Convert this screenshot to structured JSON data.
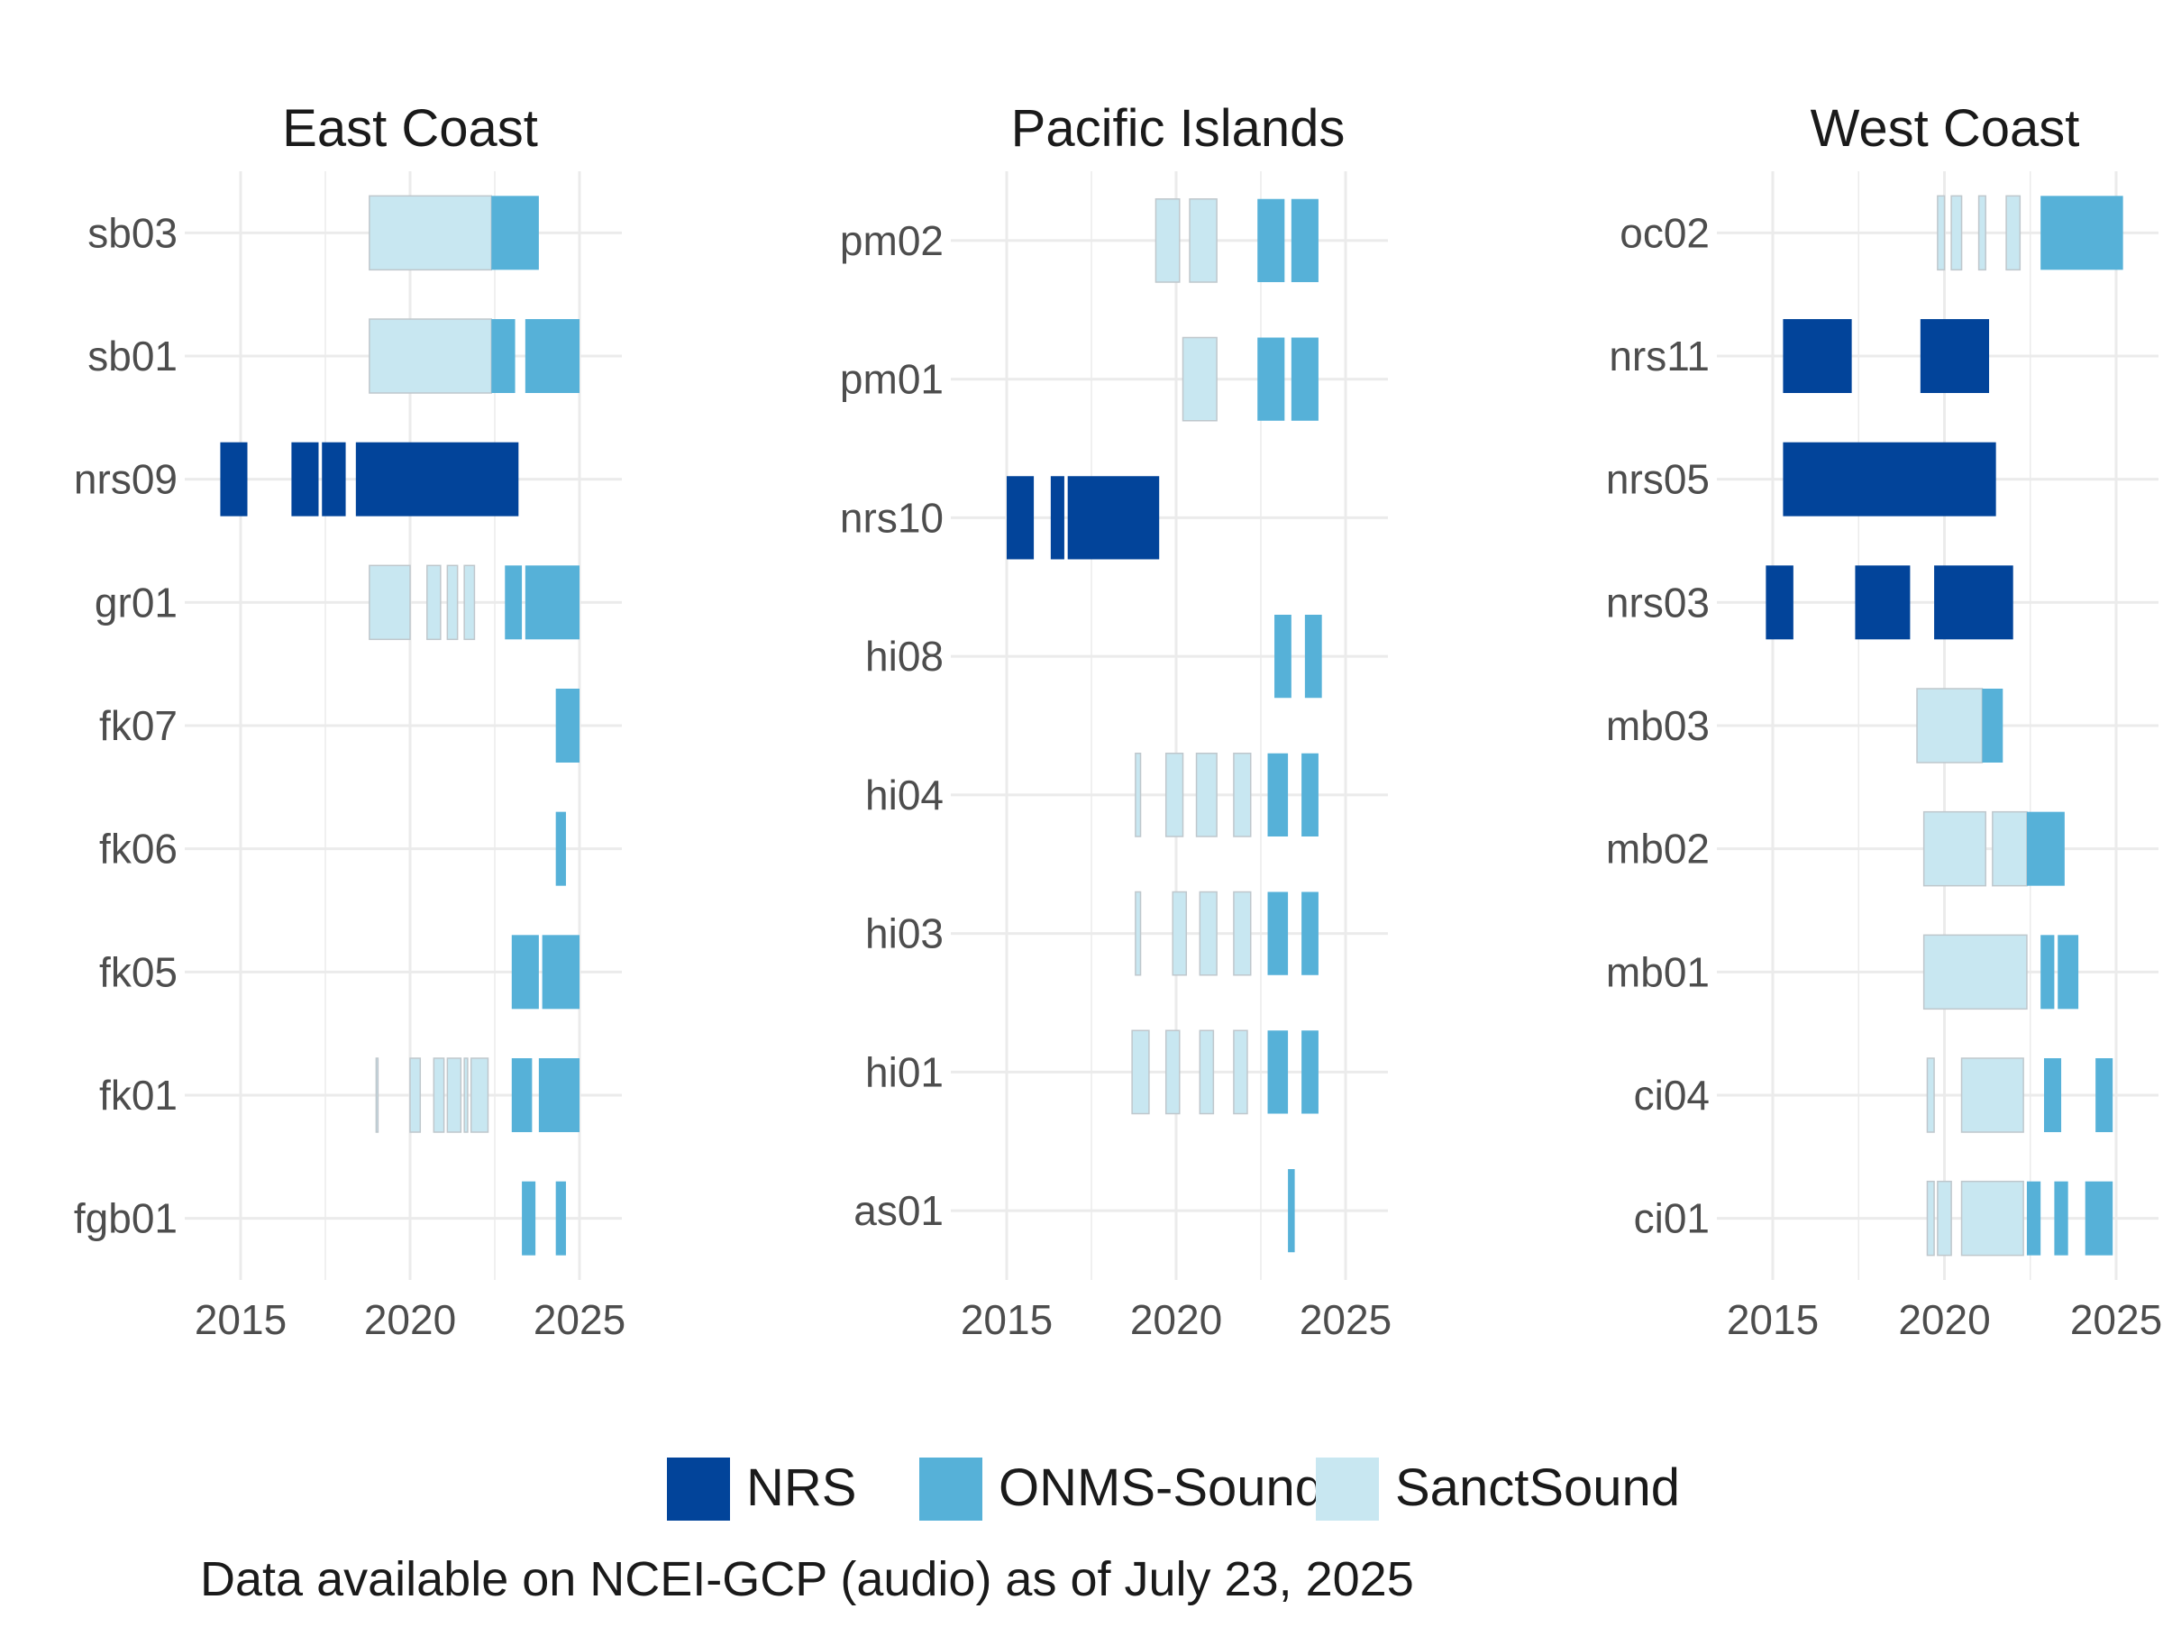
{
  "caption": "Data available on NCEI-GCP (audio) as of July 23, 2025",
  "colors": {
    "NRS": "#02449A",
    "ONMS-Sound": "#56B1D8",
    "SanctSound": "#C8E7F1",
    "grid": "#EBEBEB",
    "outline": "#BFC7CC"
  },
  "legend": {
    "items": [
      {
        "label": "NRS",
        "key": "NRS"
      },
      {
        "label": "ONMS-Sound",
        "key": "ONMS-Sound"
      },
      {
        "label": "SanctSound",
        "key": "SanctSound"
      }
    ]
  },
  "chart_data": {
    "type": "bar",
    "subtype": "faceted-timeline",
    "x_ticks": [
      "2015",
      "2020",
      "2025"
    ],
    "xlim": [
      2015,
      2026
    ],
    "grid": true,
    "legend_position": "bottom",
    "facets": [
      {
        "title": "East Coast",
        "sites": [
          "sb03",
          "sb01",
          "nrs09",
          "gr01",
          "fk07",
          "fk06",
          "fk05",
          "fk01",
          "fgb01"
        ],
        "segments": [
          {
            "site": "sb03",
            "program": "SanctSound",
            "start": 2018.8,
            "end": 2022.4
          },
          {
            "site": "sb03",
            "program": "ONMS-Sound",
            "start": 2022.4,
            "end": 2023.8
          },
          {
            "site": "sb01",
            "program": "SanctSound",
            "start": 2018.8,
            "end": 2022.4
          },
          {
            "site": "sb01",
            "program": "ONMS-Sound",
            "start": 2022.4,
            "end": 2023.1
          },
          {
            "site": "sb01",
            "program": "ONMS-Sound",
            "start": 2023.4,
            "end": 2025.0
          },
          {
            "site": "nrs09",
            "program": "NRS",
            "start": 2014.4,
            "end": 2015.2
          },
          {
            "site": "nrs09",
            "program": "NRS",
            "start": 2016.5,
            "end": 2017.3
          },
          {
            "site": "nrs09",
            "program": "NRS",
            "start": 2017.4,
            "end": 2018.1
          },
          {
            "site": "nrs09",
            "program": "NRS",
            "start": 2018.4,
            "end": 2023.2
          },
          {
            "site": "gr01",
            "program": "SanctSound",
            "start": 2018.8,
            "end": 2020.0
          },
          {
            "site": "gr01",
            "program": "SanctSound",
            "start": 2020.5,
            "end": 2020.9
          },
          {
            "site": "gr01",
            "program": "SanctSound",
            "start": 2021.1,
            "end": 2021.4
          },
          {
            "site": "gr01",
            "program": "SanctSound",
            "start": 2021.6,
            "end": 2021.9
          },
          {
            "site": "gr01",
            "program": "ONMS-Sound",
            "start": 2022.8,
            "end": 2023.3
          },
          {
            "site": "gr01",
            "program": "ONMS-Sound",
            "start": 2023.4,
            "end": 2025.0
          },
          {
            "site": "fk07",
            "program": "ONMS-Sound",
            "start": 2024.3,
            "end": 2025.0
          },
          {
            "site": "fk06",
            "program": "ONMS-Sound",
            "start": 2024.3,
            "end": 2024.6
          },
          {
            "site": "fk05",
            "program": "ONMS-Sound",
            "start": 2023.0,
            "end": 2023.8
          },
          {
            "site": "fk05",
            "program": "ONMS-Sound",
            "start": 2023.9,
            "end": 2025.0
          },
          {
            "site": "fk01",
            "program": "SanctSound",
            "start": 2019.0,
            "end": 2019.05
          },
          {
            "site": "fk01",
            "program": "SanctSound",
            "start": 2020.0,
            "end": 2020.3
          },
          {
            "site": "fk01",
            "program": "SanctSound",
            "start": 2020.7,
            "end": 2021.0
          },
          {
            "site": "fk01",
            "program": "SanctSound",
            "start": 2021.1,
            "end": 2021.5
          },
          {
            "site": "fk01",
            "program": "SanctSound",
            "start": 2021.6,
            "end": 2021.7
          },
          {
            "site": "fk01",
            "program": "SanctSound",
            "start": 2021.8,
            "end": 2022.3
          },
          {
            "site": "fk01",
            "program": "ONMS-Sound",
            "start": 2023.0,
            "end": 2023.6
          },
          {
            "site": "fk01",
            "program": "ONMS-Sound",
            "start": 2023.8,
            "end": 2025.0
          },
          {
            "site": "fgb01",
            "program": "ONMS-Sound",
            "start": 2023.3,
            "end": 2023.7
          },
          {
            "site": "fgb01",
            "program": "ONMS-Sound",
            "start": 2024.3,
            "end": 2024.6
          }
        ]
      },
      {
        "title": "Pacific Islands",
        "sites": [
          "pm02",
          "pm01",
          "nrs10",
          "hi08",
          "hi04",
          "hi03",
          "hi01",
          "as01"
        ],
        "segments": [
          {
            "site": "pm02",
            "program": "SanctSound",
            "start": 2019.4,
            "end": 2020.1
          },
          {
            "site": "pm02",
            "program": "SanctSound",
            "start": 2020.4,
            "end": 2021.2
          },
          {
            "site": "pm02",
            "program": "ONMS-Sound",
            "start": 2022.4,
            "end": 2023.2
          },
          {
            "site": "pm02",
            "program": "ONMS-Sound",
            "start": 2023.4,
            "end": 2024.2
          },
          {
            "site": "pm01",
            "program": "SanctSound",
            "start": 2020.2,
            "end": 2021.2
          },
          {
            "site": "pm01",
            "program": "ONMS-Sound",
            "start": 2022.4,
            "end": 2023.2
          },
          {
            "site": "pm01",
            "program": "ONMS-Sound",
            "start": 2023.4,
            "end": 2024.2
          },
          {
            "site": "nrs10",
            "program": "NRS",
            "start": 2015.0,
            "end": 2015.8
          },
          {
            "site": "nrs10",
            "program": "NRS",
            "start": 2016.3,
            "end": 2016.7
          },
          {
            "site": "nrs10",
            "program": "NRS",
            "start": 2016.8,
            "end": 2019.5
          },
          {
            "site": "hi08",
            "program": "ONMS-Sound",
            "start": 2022.9,
            "end": 2023.4
          },
          {
            "site": "hi08",
            "program": "ONMS-Sound",
            "start": 2023.8,
            "end": 2024.3
          },
          {
            "site": "hi04",
            "program": "SanctSound",
            "start": 2018.8,
            "end": 2018.95
          },
          {
            "site": "hi04",
            "program": "SanctSound",
            "start": 2019.7,
            "end": 2020.2
          },
          {
            "site": "hi04",
            "program": "SanctSound",
            "start": 2020.6,
            "end": 2021.2
          },
          {
            "site": "hi04",
            "program": "SanctSound",
            "start": 2021.7,
            "end": 2022.2
          },
          {
            "site": "hi04",
            "program": "ONMS-Sound",
            "start": 2022.7,
            "end": 2023.3
          },
          {
            "site": "hi04",
            "program": "ONMS-Sound",
            "start": 2023.7,
            "end": 2024.2
          },
          {
            "site": "hi03",
            "program": "SanctSound",
            "start": 2018.8,
            "end": 2018.95
          },
          {
            "site": "hi03",
            "program": "SanctSound",
            "start": 2019.9,
            "end": 2020.3
          },
          {
            "site": "hi03",
            "program": "SanctSound",
            "start": 2020.7,
            "end": 2021.2
          },
          {
            "site": "hi03",
            "program": "SanctSound",
            "start": 2021.7,
            "end": 2022.2
          },
          {
            "site": "hi03",
            "program": "ONMS-Sound",
            "start": 2022.7,
            "end": 2023.3
          },
          {
            "site": "hi03",
            "program": "ONMS-Sound",
            "start": 2023.7,
            "end": 2024.2
          },
          {
            "site": "hi01",
            "program": "SanctSound",
            "start": 2018.7,
            "end": 2019.2
          },
          {
            "site": "hi01",
            "program": "SanctSound",
            "start": 2019.7,
            "end": 2020.1
          },
          {
            "site": "hi01",
            "program": "SanctSound",
            "start": 2020.7,
            "end": 2021.1
          },
          {
            "site": "hi01",
            "program": "SanctSound",
            "start": 2021.7,
            "end": 2022.1
          },
          {
            "site": "hi01",
            "program": "ONMS-Sound",
            "start": 2022.7,
            "end": 2023.3
          },
          {
            "site": "hi01",
            "program": "ONMS-Sound",
            "start": 2023.7,
            "end": 2024.2
          },
          {
            "site": "as01",
            "program": "ONMS-Sound",
            "start": 2023.3,
            "end": 2023.5
          }
        ]
      },
      {
        "title": "West Coast",
        "sites": [
          "oc02",
          "nrs11",
          "nrs05",
          "nrs03",
          "mb03",
          "mb02",
          "mb01",
          "ci04",
          "ci01"
        ],
        "segments": [
          {
            "site": "oc02",
            "program": "SanctSound",
            "start": 2019.8,
            "end": 2020.0
          },
          {
            "site": "oc02",
            "program": "SanctSound",
            "start": 2020.2,
            "end": 2020.5
          },
          {
            "site": "oc02",
            "program": "SanctSound",
            "start": 2021.0,
            "end": 2021.2
          },
          {
            "site": "oc02",
            "program": "SanctSound",
            "start": 2021.8,
            "end": 2022.2
          },
          {
            "site": "oc02",
            "program": "ONMS-Sound",
            "start": 2022.8,
            "end": 2025.2
          },
          {
            "site": "nrs11",
            "program": "NRS",
            "start": 2015.3,
            "end": 2017.3
          },
          {
            "site": "nrs11",
            "program": "NRS",
            "start": 2019.3,
            "end": 2021.3
          },
          {
            "site": "nrs05",
            "program": "NRS",
            "start": 2015.3,
            "end": 2021.5
          },
          {
            "site": "nrs03",
            "program": "NRS",
            "start": 2014.8,
            "end": 2015.6
          },
          {
            "site": "nrs03",
            "program": "NRS",
            "start": 2017.4,
            "end": 2019.0
          },
          {
            "site": "nrs03",
            "program": "NRS",
            "start": 2019.7,
            "end": 2022.0
          },
          {
            "site": "mb03",
            "program": "SanctSound",
            "start": 2019.2,
            "end": 2021.1
          },
          {
            "site": "mb03",
            "program": "ONMS-Sound",
            "start": 2021.1,
            "end": 2021.7
          },
          {
            "site": "mb02",
            "program": "SanctSound",
            "start": 2019.4,
            "end": 2021.2
          },
          {
            "site": "mb02",
            "program": "SanctSound",
            "start": 2021.4,
            "end": 2022.4
          },
          {
            "site": "mb02",
            "program": "ONMS-Sound",
            "start": 2022.4,
            "end": 2023.5
          },
          {
            "site": "mb01",
            "program": "SanctSound",
            "start": 2019.4,
            "end": 2022.4
          },
          {
            "site": "mb01",
            "program": "ONMS-Sound",
            "start": 2022.8,
            "end": 2023.2
          },
          {
            "site": "mb01",
            "program": "ONMS-Sound",
            "start": 2023.3,
            "end": 2023.9
          },
          {
            "site": "ci04",
            "program": "SanctSound",
            "start": 2019.5,
            "end": 2019.7
          },
          {
            "site": "ci04",
            "program": "SanctSound",
            "start": 2020.5,
            "end": 2022.3
          },
          {
            "site": "ci04",
            "program": "ONMS-Sound",
            "start": 2022.9,
            "end": 2023.4
          },
          {
            "site": "ci04",
            "program": "ONMS-Sound",
            "start": 2024.4,
            "end": 2024.9
          },
          {
            "site": "ci01",
            "program": "SanctSound",
            "start": 2019.5,
            "end": 2019.7
          },
          {
            "site": "ci01",
            "program": "SanctSound",
            "start": 2019.8,
            "end": 2020.2
          },
          {
            "site": "ci01",
            "program": "SanctSound",
            "start": 2020.5,
            "end": 2022.3
          },
          {
            "site": "ci01",
            "program": "ONMS-Sound",
            "start": 2022.4,
            "end": 2022.8
          },
          {
            "site": "ci01",
            "program": "ONMS-Sound",
            "start": 2023.2,
            "end": 2023.6
          },
          {
            "site": "ci01",
            "program": "ONMS-Sound",
            "start": 2024.1,
            "end": 2024.9
          }
        ]
      }
    ]
  }
}
